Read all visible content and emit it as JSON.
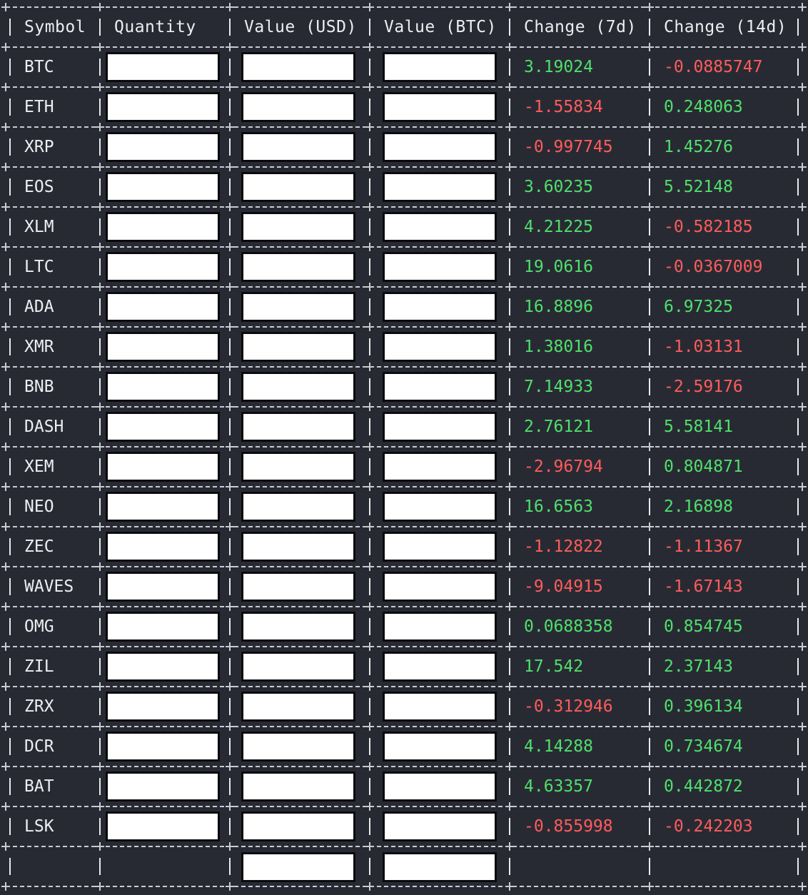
{
  "columns": [
    "Symbol",
    "Quantity",
    "Value (USD)",
    "Value (BTC)",
    "Change (7d)",
    "Change (14d)"
  ],
  "colors": {
    "positive": "#4fe06d",
    "negative": "#ff5c5c",
    "background": "#282a33",
    "text": "#eceef2"
  },
  "rows": [
    {
      "symbol": "BTC",
      "quantity": "",
      "value_usd": "",
      "value_btc": "",
      "change_7d": "3.19024",
      "change_14d": "-0.0885747"
    },
    {
      "symbol": "ETH",
      "quantity": "",
      "value_usd": "",
      "value_btc": "",
      "change_7d": "-1.55834",
      "change_14d": "0.248063"
    },
    {
      "symbol": "XRP",
      "quantity": "",
      "value_usd": "",
      "value_btc": "",
      "change_7d": "-0.997745",
      "change_14d": "1.45276"
    },
    {
      "symbol": "EOS",
      "quantity": "",
      "value_usd": "",
      "value_btc": "",
      "change_7d": "3.60235",
      "change_14d": "5.52148"
    },
    {
      "symbol": "XLM",
      "quantity": "",
      "value_usd": "",
      "value_btc": "",
      "change_7d": "4.21225",
      "change_14d": "-0.582185"
    },
    {
      "symbol": "LTC",
      "quantity": "",
      "value_usd": "",
      "value_btc": "",
      "change_7d": "19.0616",
      "change_14d": "-0.0367009"
    },
    {
      "symbol": "ADA",
      "quantity": "",
      "value_usd": "",
      "value_btc": "",
      "change_7d": "16.8896",
      "change_14d": "6.97325"
    },
    {
      "symbol": "XMR",
      "quantity": "",
      "value_usd": "",
      "value_btc": "",
      "change_7d": "1.38016",
      "change_14d": "-1.03131"
    },
    {
      "symbol": "BNB",
      "quantity": "",
      "value_usd": "",
      "value_btc": "",
      "change_7d": "7.14933",
      "change_14d": "-2.59176"
    },
    {
      "symbol": "DASH",
      "quantity": "",
      "value_usd": "",
      "value_btc": "",
      "change_7d": "2.76121",
      "change_14d": "5.58141"
    },
    {
      "symbol": "XEM",
      "quantity": "",
      "value_usd": "",
      "value_btc": "",
      "change_7d": "-2.96794",
      "change_14d": "0.804871"
    },
    {
      "symbol": "NEO",
      "quantity": "",
      "value_usd": "",
      "value_btc": "",
      "change_7d": "16.6563",
      "change_14d": "2.16898"
    },
    {
      "symbol": "ZEC",
      "quantity": "",
      "value_usd": "",
      "value_btc": "",
      "change_7d": "-1.12822",
      "change_14d": "-1.11367"
    },
    {
      "symbol": "WAVES",
      "quantity": "",
      "value_usd": "",
      "value_btc": "",
      "change_7d": "-9.04915",
      "change_14d": "-1.67143"
    },
    {
      "symbol": "OMG",
      "quantity": "",
      "value_usd": "",
      "value_btc": "",
      "change_7d": "0.0688358",
      "change_14d": "0.854745"
    },
    {
      "symbol": "ZIL",
      "quantity": "",
      "value_usd": "",
      "value_btc": "",
      "change_7d": "17.542",
      "change_14d": "2.37143"
    },
    {
      "symbol": "ZRX",
      "quantity": "",
      "value_usd": "",
      "value_btc": "",
      "change_7d": "-0.312946",
      "change_14d": "0.396134"
    },
    {
      "symbol": "DCR",
      "quantity": "",
      "value_usd": "",
      "value_btc": "",
      "change_7d": "4.14288",
      "change_14d": "0.734674"
    },
    {
      "symbol": "BAT",
      "quantity": "",
      "value_usd": "",
      "value_btc": "",
      "change_7d": "4.63357",
      "change_14d": "0.442872"
    },
    {
      "symbol": "LSK",
      "quantity": "",
      "value_usd": "",
      "value_btc": "",
      "change_7d": "-0.855998",
      "change_14d": "-0.242203"
    }
  ],
  "totals": {
    "value_usd": "",
    "value_btc": ""
  }
}
